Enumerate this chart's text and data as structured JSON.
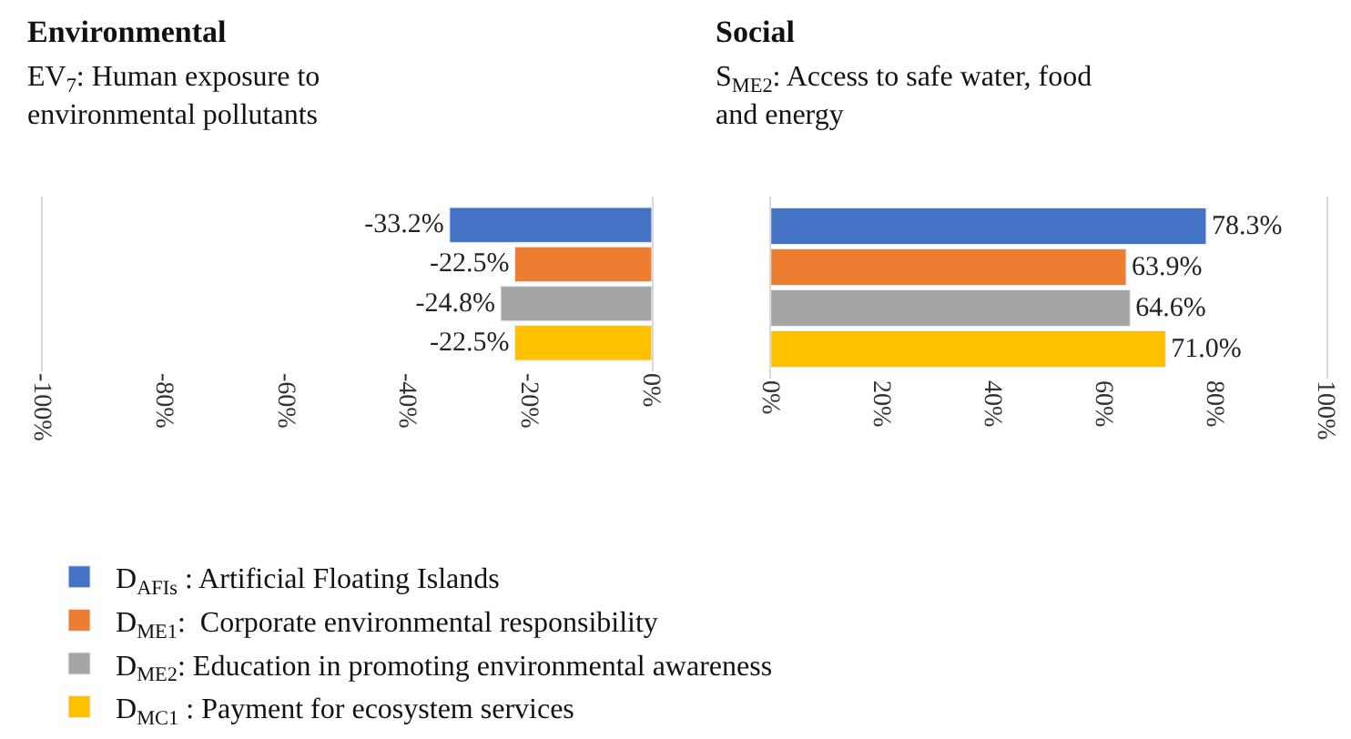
{
  "chart_data": [
    {
      "type": "bar",
      "orientation": "horizontal",
      "title": "Environmental",
      "subtitle": "EV$_{7}$: Human exposure to environmental pollutants",
      "categories": [
        null
      ],
      "series": [
        {
          "name": "D$_{AFIs}$ : Artificial Floating Islands",
          "color": "#4472c4",
          "values": [
            -33.2
          ],
          "value_labels": [
            "-33.2%"
          ]
        },
        {
          "name": "D$_{ME1}$:  Corporate environmental responsibility",
          "color": "#ed7d31",
          "values": [
            -22.5
          ],
          "value_labels": [
            "-22.5%"
          ]
        },
        {
          "name": "D$_{ME2}$: Education in promoting environmental awareness",
          "color": "#a5a5a5",
          "values": [
            -24.8
          ],
          "value_labels": [
            "-24.8%"
          ]
        },
        {
          "name": "D$_{MC1}$ : Payment for ecosystem services",
          "color": "#ffc000",
          "values": [
            -22.5
          ],
          "value_labels": [
            "-22.5%"
          ]
        }
      ],
      "xlim": [
        -100,
        0
      ],
      "xticks": [
        {
          "value": -100,
          "label": "-100%"
        },
        {
          "value": -80,
          "label": "-80%"
        },
        {
          "value": -60,
          "label": "-60%"
        },
        {
          "value": -40,
          "label": "-40%"
        },
        {
          "value": -20,
          "label": "-20%"
        },
        {
          "value": 0,
          "label": "0%"
        }
      ],
      "tick_labels": "x",
      "grid": false,
      "legend": "bottom"
    },
    {
      "type": "bar",
      "orientation": "horizontal",
      "title": "Social",
      "subtitle": "S$_{ME2}$: Access to safe water, food and energy",
      "categories": [
        null
      ],
      "series": [
        {
          "color": "#4472c4",
          "values": [
            78.3
          ],
          "value_labels": [
            "78.3%"
          ]
        },
        {
          "color": "#ed7d31",
          "values": [
            63.9
          ],
          "value_labels": [
            "63.9%"
          ]
        },
        {
          "color": "#a5a5a5",
          "values": [
            64.6
          ],
          "value_labels": [
            "64.6%"
          ]
        },
        {
          "color": "#ffc000",
          "values": [
            71.0
          ],
          "value_labels": [
            "71.0%"
          ]
        }
      ],
      "xlim": [
        0,
        100
      ],
      "xticks": [
        {
          "value": 0,
          "label": "0%"
        },
        {
          "value": 20,
          "label": "20%"
        },
        {
          "value": 40,
          "label": "40%"
        },
        {
          "value": 60,
          "label": "60%"
        },
        {
          "value": 80,
          "label": "80%"
        },
        {
          "value": 100,
          "label": "100%"
        }
      ],
      "tick_labels": "x",
      "grid": false,
      "legend": false
    }
  ]
}
